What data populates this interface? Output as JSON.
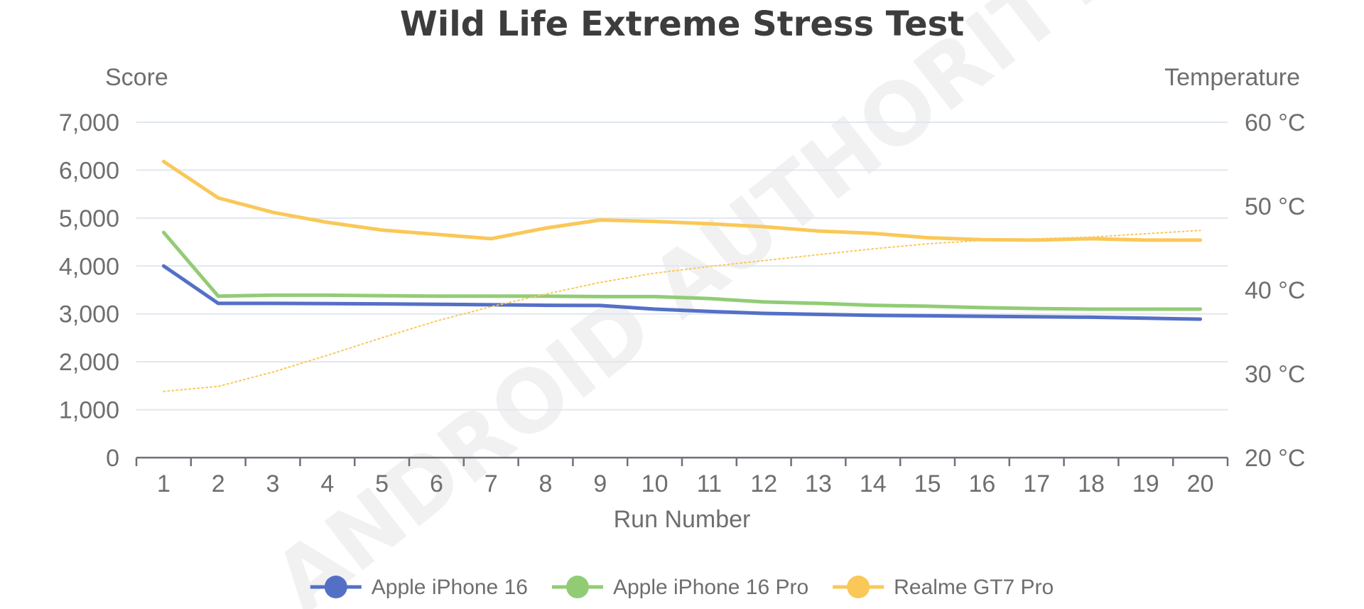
{
  "colors": {
    "apple_iphone_16": "#5470c6",
    "apple_iphone_16_pro": "#91cc75",
    "realme_gt7_pro": "#fac858",
    "grid": "#e0e6f1",
    "axis": "#6e7079"
  },
  "chart_data": {
    "type": "line",
    "title": "Wild Life Extreme Stress Test",
    "xlabel": "Run Number",
    "ylabel": "Score",
    "y2label": "Temperature",
    "x": [
      1,
      2,
      3,
      4,
      5,
      6,
      7,
      8,
      9,
      10,
      11,
      12,
      13,
      14,
      15,
      16,
      17,
      18,
      19,
      20
    ],
    "ylim": [
      0,
      7000
    ],
    "y2lim": [
      20,
      60
    ],
    "yticks": [
      "0",
      "1,000",
      "2,000",
      "3,000",
      "4,000",
      "5,000",
      "6,000",
      "7,000"
    ],
    "y2ticks": [
      "20 °C",
      "30 °C",
      "40 °C",
      "50 °C",
      "60 °C"
    ],
    "grid": true,
    "legend_position": "bottom-center",
    "series": [
      {
        "name": "Apple iPhone 16",
        "axis": "left",
        "values": [
          4000,
          3220,
          3220,
          3215,
          3210,
          3200,
          3190,
          3180,
          3175,
          3100,
          3050,
          3010,
          2990,
          2970,
          2960,
          2950,
          2940,
          2930,
          2910,
          2890
        ]
      },
      {
        "name": "Apple iPhone 16 Pro",
        "axis": "left",
        "values": [
          4700,
          3370,
          3390,
          3390,
          3380,
          3370,
          3370,
          3370,
          3360,
          3360,
          3320,
          3250,
          3220,
          3180,
          3160,
          3130,
          3110,
          3100,
          3100,
          3100
        ]
      },
      {
        "name": "Realme GT7 Pro",
        "axis": "left",
        "values": [
          6180,
          5420,
          5120,
          4910,
          4750,
          4660,
          4570,
          4790,
          4960,
          4930,
          4880,
          4820,
          4730,
          4680,
          4590,
          4550,
          4540,
          4570,
          4540,
          4540
        ]
      },
      {
        "axis": "right",
        "style": "dotted",
        "color_of": "Realme GT7 Pro",
        "values": [
          27.9,
          28.5,
          30.2,
          32.2,
          34.3,
          36.3,
          38.0,
          39.5,
          40.9,
          42.0,
          42.8,
          43.5,
          44.2,
          44.9,
          45.5,
          45.9,
          46.1,
          46.3,
          46.7,
          47.1
        ]
      }
    ]
  },
  "watermark": "ANDROID AUTHORITY"
}
